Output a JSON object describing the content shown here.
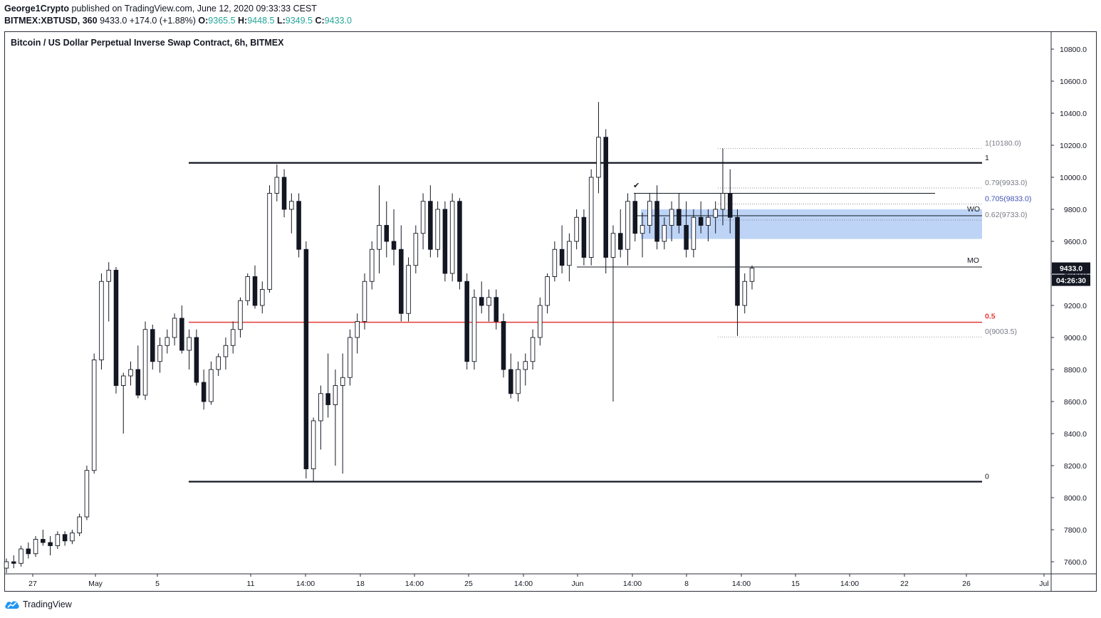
{
  "header": {
    "author": "George1Crypto",
    "published": "published on TradingView.com, June 12, 2020 09:33:33 CEST",
    "symbol": "BITMEX:XBTUSD, 360",
    "last": "9433.0",
    "change": "+174.0 (+1.88%)",
    "open_label": "O:",
    "open": "9365.5",
    "high_label": "H:",
    "high": "9448.5",
    "low_label": "L:",
    "low": "9349.5",
    "close_label": "C:",
    "close": "9433.0"
  },
  "chart_title": "Bitcoin / US Dollar Perpetual Inverse Swap Contract, 6h, BITMEX",
  "footer": {
    "brand": "TradingView"
  },
  "colors": {
    "up": "#131722",
    "down": "#131722",
    "red_line": "#e53935",
    "zone": "#b3cdf5",
    "accent": "#26a69a",
    "blue_fib": "#3f51b5"
  },
  "chart_data": {
    "type": "candlestick",
    "title": "Bitcoin / US Dollar Perpetual Inverse Swap Contract, 6h, BITMEX",
    "x_ticks": [
      "27",
      "May",
      "5",
      "11",
      "14:00",
      "18",
      "14:00",
      "25",
      "14:00",
      "Jun",
      "14:00",
      "8",
      "14:00",
      "15",
      "14:00",
      "22",
      "26",
      "Jul"
    ],
    "y_ticks": [
      "7600.0",
      "7800.0",
      "8000.0",
      "8200.0",
      "8400.0",
      "8600.0",
      "8800.0",
      "9000.0",
      "9200.0",
      "9400.0",
      "9600.0",
      "9800.0",
      "10000.0",
      "10200.0",
      "10400.0",
      "10600.0",
      "10800.0"
    ],
    "ylim": [
      7530,
      10930
    ],
    "price_tag": "9433.0",
    "countdown_tag": "04:26:30",
    "levels": [
      {
        "label": "1",
        "price": 10090,
        "color": "#131722",
        "style": "thick"
      },
      {
        "label": "0.5",
        "price": 9095,
        "color": "#e53935",
        "style": "medium"
      },
      {
        "label": "0",
        "price": 8100,
        "color": "#131722",
        "style": "thick"
      },
      {
        "label": "MO",
        "price": 9440,
        "color": "#131722",
        "style": "thin"
      },
      {
        "label": "WO",
        "price": 9760,
        "color": "#131722",
        "style": "thin"
      }
    ],
    "fib_labels": [
      {
        "text": "1(10180.0)",
        "price": 10180,
        "color": "#787b86"
      },
      {
        "text": "0.79(9933.0)",
        "price": 9933,
        "color": "#787b86"
      },
      {
        "text": "0.705(9833.0)",
        "price": 9833,
        "color": "#3f51b5"
      },
      {
        "text": "0.62(9733.0)",
        "price": 9733,
        "color": "#787b86"
      },
      {
        "text": "0(9003.5)",
        "price": 9003.5,
        "color": "#787b86"
      }
    ],
    "zone": {
      "top": 9800,
      "bottom": 9615
    },
    "check_mark": "✔",
    "candles": [
      [
        7560,
        7620,
        7530,
        7600
      ],
      [
        7600,
        7640,
        7560,
        7590
      ],
      [
        7590,
        7700,
        7570,
        7680
      ],
      [
        7680,
        7720,
        7620,
        7650
      ],
      [
        7650,
        7760,
        7630,
        7740
      ],
      [
        7740,
        7800,
        7700,
        7720
      ],
      [
        7720,
        7760,
        7640,
        7700
      ],
      [
        7700,
        7790,
        7680,
        7770
      ],
      [
        7770,
        7790,
        7700,
        7730
      ],
      [
        7730,
        7800,
        7710,
        7780
      ],
      [
        7780,
        7900,
        7760,
        7880
      ],
      [
        7880,
        8200,
        7860,
        8170
      ],
      [
        8170,
        8900,
        8150,
        8860
      ],
      [
        8860,
        9400,
        8800,
        9350
      ],
      [
        9350,
        9470,
        9100,
        9420
      ],
      [
        9420,
        9440,
        8650,
        8700
      ],
      [
        8700,
        8780,
        8400,
        8760
      ],
      [
        8760,
        8850,
        8700,
        8800
      ],
      [
        8800,
        8950,
        8620,
        8640
      ],
      [
        8640,
        9100,
        8610,
        9050
      ],
      [
        9050,
        9080,
        8800,
        8850
      ],
      [
        8850,
        9000,
        8780,
        8950
      ],
      [
        8950,
        9050,
        8900,
        9000
      ],
      [
        9000,
        9150,
        8950,
        9120
      ],
      [
        9120,
        9200,
        8900,
        8920
      ],
      [
        8920,
        9050,
        8800,
        9000
      ],
      [
        9000,
        9050,
        8700,
        8720
      ],
      [
        8720,
        8800,
        8550,
        8600
      ],
      [
        8600,
        8850,
        8580,
        8800
      ],
      [
        8800,
        8900,
        8760,
        8880
      ],
      [
        8880,
        9000,
        8800,
        8950
      ],
      [
        8950,
        9100,
        8900,
        9050
      ],
      [
        9050,
        9250,
        9000,
        9230
      ],
      [
        9230,
        9400,
        9200,
        9380
      ],
      [
        9380,
        9450,
        9180,
        9200
      ],
      [
        9200,
        9350,
        9150,
        9300
      ],
      [
        9300,
        9950,
        9280,
        9900
      ],
      [
        9900,
        10080,
        9850,
        10000
      ],
      [
        10000,
        10050,
        9750,
        9800
      ],
      [
        9800,
        9900,
        9650,
        9850
      ],
      [
        9850,
        9900,
        9500,
        9550
      ],
      [
        9550,
        9600,
        8120,
        8180
      ],
      [
        8180,
        8500,
        8100,
        8480
      ],
      [
        8480,
        8700,
        8300,
        8650
      ],
      [
        8650,
        8900,
        8500,
        8580
      ],
      [
        8580,
        8800,
        8200,
        8700
      ],
      [
        8700,
        8900,
        8150,
        8750
      ],
      [
        8750,
        9050,
        8700,
        9000
      ],
      [
        9000,
        9150,
        8900,
        9100
      ],
      [
        9100,
        9400,
        9050,
        9350
      ],
      [
        9350,
        9600,
        9300,
        9550
      ],
      [
        9550,
        9950,
        9400,
        9700
      ],
      [
        9700,
        9850,
        9500,
        9600
      ],
      [
        9600,
        9800,
        9450,
        9550
      ],
      [
        9550,
        9700,
        9100,
        9150
      ],
      [
        9150,
        9500,
        9100,
        9450
      ],
      [
        9450,
        9700,
        9400,
        9650
      ],
      [
        9650,
        9900,
        9550,
        9850
      ],
      [
        9850,
        9950,
        9500,
        9550
      ],
      [
        9550,
        9850,
        9500,
        9800
      ],
      [
        9800,
        9850,
        9350,
        9400
      ],
      [
        9400,
        9900,
        9350,
        9850
      ],
      [
        9850,
        9870,
        9300,
        9350
      ],
      [
        9350,
        9400,
        8800,
        8850
      ],
      [
        8850,
        9300,
        8800,
        9250
      ],
      [
        9250,
        9350,
        9150,
        9200
      ],
      [
        9200,
        9300,
        9100,
        9250
      ],
      [
        9250,
        9300,
        9050,
        9100
      ],
      [
        9100,
        9150,
        8750,
        8800
      ],
      [
        8800,
        8900,
        8620,
        8650
      ],
      [
        8650,
        8850,
        8600,
        8800
      ],
      [
        8800,
        8900,
        8700,
        8850
      ],
      [
        8850,
        9050,
        8800,
        9000
      ],
      [
        9000,
        9250,
        8950,
        9200
      ],
      [
        9200,
        9400,
        9150,
        9380
      ],
      [
        9380,
        9600,
        9350,
        9550
      ],
      [
        9550,
        9700,
        9400,
        9450
      ],
      [
        9450,
        9650,
        9350,
        9600
      ],
      [
        9600,
        9800,
        9550,
        9750
      ],
      [
        9750,
        9800,
        9450,
        9500
      ],
      [
        9500,
        10050,
        9450,
        10000
      ],
      [
        10000,
        10470,
        9900,
        10250
      ],
      [
        10250,
        10300,
        9400,
        9500
      ],
      [
        9500,
        9700,
        8600,
        9650
      ],
      [
        9650,
        9800,
        9500,
        9550
      ],
      [
        9550,
        9900,
        9450,
        9850
      ],
      [
        9850,
        9900,
        9600,
        9650
      ],
      [
        9650,
        9780,
        9500,
        9700
      ],
      [
        9700,
        9900,
        9650,
        9850
      ],
      [
        9850,
        9950,
        9550,
        9600
      ],
      [
        9600,
        9750,
        9550,
        9700
      ],
      [
        9700,
        9850,
        9600,
        9800
      ],
      [
        9800,
        9900,
        9650,
        9700
      ],
      [
        9700,
        9850,
        9500,
        9550
      ],
      [
        9550,
        9800,
        9500,
        9750
      ],
      [
        9750,
        9850,
        9650,
        9700
      ],
      [
        9700,
        9800,
        9600,
        9750
      ],
      [
        9750,
        9850,
        9650,
        9800
      ],
      [
        9800,
        10180,
        9700,
        9900
      ],
      [
        9900,
        10050,
        9650,
        9750
      ],
      [
        9750,
        9800,
        9010,
        9200
      ],
      [
        9200,
        9400,
        9150,
        9350
      ],
      [
        9350,
        9450,
        9300,
        9433
      ]
    ]
  }
}
